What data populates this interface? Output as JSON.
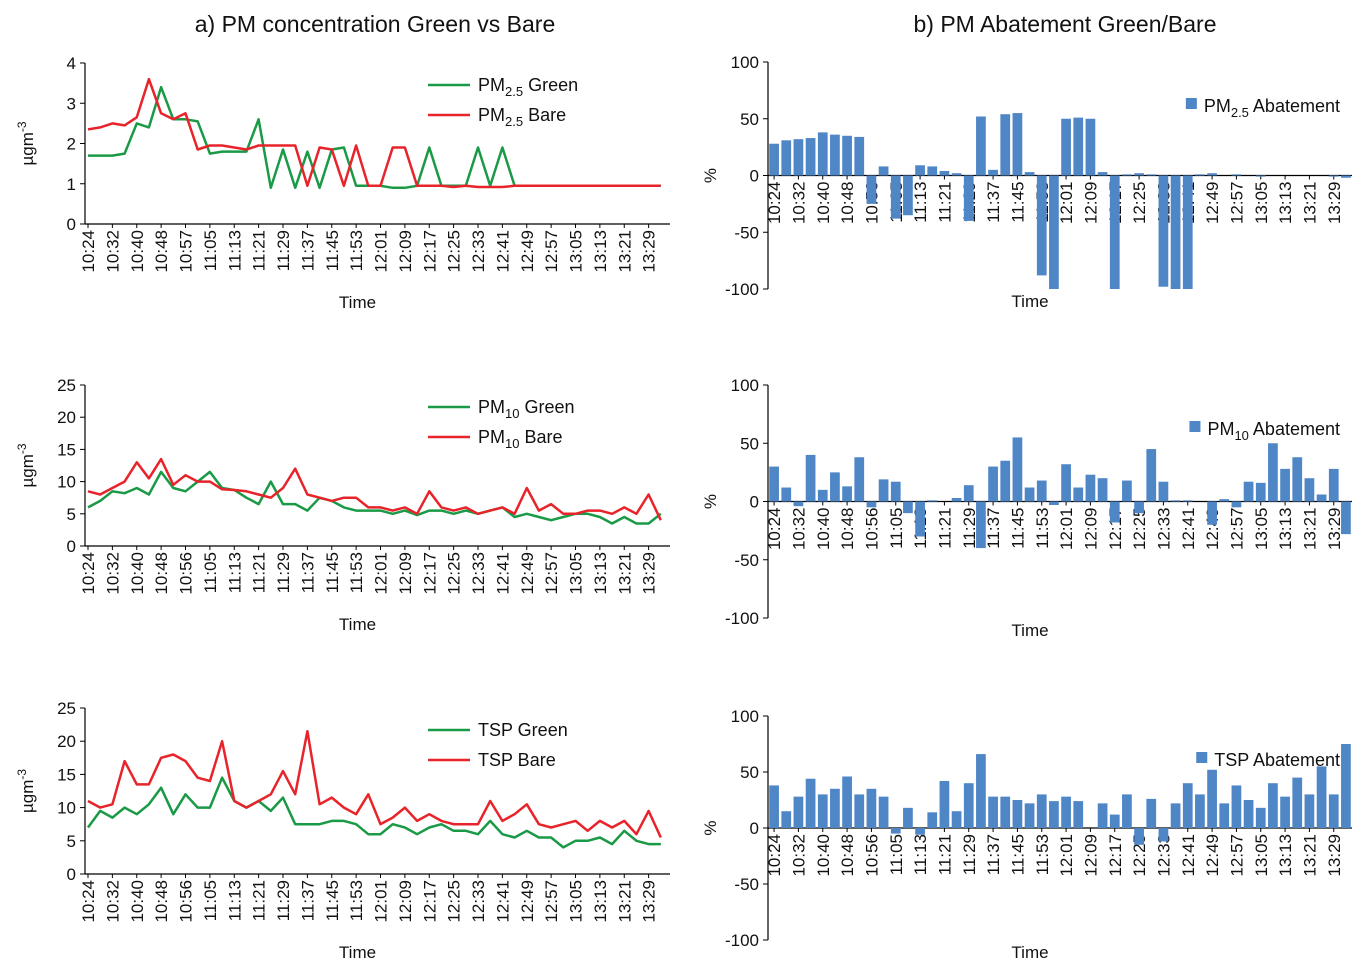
{
  "column_titles": [
    "a) PM concentration Green vs Bare",
    "b) PM Abatement Green/Bare"
  ],
  "chart_data": [
    {
      "type": "line",
      "xlabel": "Time",
      "ylabel": "µgm-3",
      "ylim": [
        0,
        4
      ],
      "yticks": [
        0,
        1,
        2,
        3,
        4
      ],
      "legend": "upper right",
      "categories": [
        "10:24",
        null,
        "10:32",
        null,
        "10:40",
        null,
        "10:48",
        null,
        "10:57",
        null,
        "11:05",
        null,
        "11:13",
        null,
        "11:21",
        null,
        "11:29",
        null,
        "11:37",
        null,
        "11:45",
        null,
        "11:53",
        null,
        "12:01",
        null,
        "12:09",
        null,
        "12:17",
        null,
        "12:25",
        null,
        "12:33",
        null,
        "12:41",
        null,
        "12:49",
        null,
        "12:57",
        null,
        "13:05",
        null,
        "13:13",
        null,
        "13:21",
        null,
        "13:29",
        null
      ],
      "series": [
        {
          "name": "PM2.5 Green",
          "color": "#1a9a46",
          "values": [
            1.7,
            1.7,
            1.7,
            1.75,
            2.5,
            2.4,
            3.4,
            2.6,
            2.6,
            2.55,
            1.75,
            1.8,
            1.8,
            1.8,
            2.6,
            0.9,
            1.85,
            0.9,
            1.8,
            0.9,
            1.85,
            1.9,
            0.95,
            0.95,
            0.95,
            0.9,
            0.9,
            0.95,
            1.9,
            0.95,
            0.95,
            0.95,
            1.9,
            0.95,
            1.9,
            0.95,
            0.95,
            0.95,
            0.95,
            0.95,
            0.95,
            0.95,
            0.95,
            0.95,
            0.95,
            0.95,
            0.95,
            0.95
          ]
        },
        {
          "name": "PM2.5 Bare",
          "color": "#e8232a",
          "values": [
            2.35,
            2.4,
            2.5,
            2.45,
            2.65,
            3.6,
            2.75,
            2.6,
            2.75,
            1.85,
            1.95,
            1.95,
            1.9,
            1.85,
            1.95,
            1.95,
            1.95,
            1.95,
            0.95,
            1.9,
            1.85,
            0.95,
            1.95,
            0.95,
            0.95,
            1.9,
            1.9,
            0.95,
            0.95,
            0.95,
            0.92,
            0.95,
            0.92,
            0.92,
            0.92,
            0.95,
            0.95,
            0.95,
            0.95,
            0.95,
            0.95,
            0.95,
            0.95,
            0.95,
            0.95,
            0.95,
            0.95,
            0.95
          ]
        }
      ]
    },
    {
      "type": "bar",
      "xlabel": "Time",
      "ylabel": "%",
      "ylim": [
        -100,
        100
      ],
      "yticks": [
        -100,
        -50,
        0,
        50,
        100
      ],
      "legend": "upper right",
      "categories": [
        "10:24",
        null,
        "10:32",
        null,
        "10:40",
        null,
        "10:48",
        null,
        "10:56",
        null,
        "11:05",
        null,
        "11:13",
        null,
        "11:21",
        null,
        "11:29",
        null,
        "11:37",
        null,
        "11:45",
        null,
        "11:53",
        null,
        "12:01",
        null,
        "12:09",
        null,
        "12:17",
        null,
        "12:25",
        null,
        "12:33",
        null,
        "12:41",
        null,
        "12:49",
        null,
        "12:57",
        null,
        "13:05",
        null,
        "13:13",
        null,
        "13:21",
        null,
        "13:29",
        null
      ],
      "series": [
        {
          "name": "PM2.5 Abatement",
          "color": "#4f86c6",
          "values": [
            28,
            31,
            32,
            33,
            38,
            36,
            35,
            34,
            -25,
            8,
            -38,
            -35,
            9,
            8,
            4,
            2,
            -40,
            52,
            5,
            54,
            55,
            3,
            -88,
            -100,
            50,
            51,
            50,
            3,
            -100,
            1,
            2,
            1,
            -98,
            -100,
            -100,
            1,
            2,
            0,
            1,
            0,
            -1,
            0,
            0,
            0,
            0,
            0,
            -1,
            -2
          ]
        }
      ]
    },
    {
      "type": "line",
      "xlabel": "Time",
      "ylabel": "µgm-3",
      "ylim": [
        0,
        25
      ],
      "yticks": [
        0,
        5,
        10,
        15,
        20,
        25
      ],
      "legend": "upper right",
      "categories": [
        "10:24",
        null,
        "10:32",
        null,
        "10:40",
        null,
        "10:48",
        null,
        "10:56",
        null,
        "11:05",
        null,
        "11:13",
        null,
        "11:21",
        null,
        "11:29",
        null,
        "11:37",
        null,
        "11:45",
        null,
        "11:53",
        null,
        "12:01",
        null,
        "12:09",
        null,
        "12:17",
        null,
        "12:25",
        null,
        "12:33",
        null,
        "12:41",
        null,
        "12:49",
        null,
        "12:57",
        null,
        "13:05",
        null,
        "13:13",
        null,
        "13:21",
        null,
        "13:29",
        null
      ],
      "series": [
        {
          "name": "PM10 Green",
          "color": "#1a9a46",
          "values": [
            6,
            7,
            8.5,
            8.2,
            9,
            8,
            11.5,
            9,
            8.5,
            10,
            11.5,
            9,
            8.7,
            7.5,
            6.5,
            10,
            6.5,
            6.5,
            5.5,
            7.5,
            7,
            6,
            5.5,
            5.5,
            5.5,
            5,
            5.5,
            4.8,
            5.5,
            5.5,
            5,
            5.5,
            5,
            5.5,
            6,
            4.5,
            5,
            4.5,
            4,
            4.5,
            5,
            5,
            4.5,
            3.5,
            4.5,
            3.5,
            3.5,
            5
          ]
        },
        {
          "name": "PM10 Bare",
          "color": "#e8232a",
          "values": [
            8.5,
            8,
            9,
            10,
            13,
            10.5,
            13.5,
            9.5,
            11,
            10,
            10,
            8.8,
            8.7,
            8.5,
            8,
            7.5,
            9,
            12,
            8,
            7.5,
            7,
            7.5,
            7.5,
            6,
            6,
            5.5,
            6,
            5,
            8.5,
            6,
            5.5,
            6,
            5,
            5.5,
            6,
            5,
            9,
            5.5,
            6.5,
            5,
            5,
            5.5,
            5.5,
            5,
            6,
            5,
            8,
            4
          ]
        }
      ]
    },
    {
      "type": "bar",
      "xlabel": "Time",
      "ylabel": "%",
      "ylim": [
        -100,
        100
      ],
      "yticks": [
        -100,
        -50,
        0,
        50,
        100
      ],
      "legend": "upper right",
      "categories": [
        "10:24",
        null,
        "10:32",
        null,
        "10:40",
        null,
        "10:48",
        null,
        "10:56",
        null,
        "11:05",
        null,
        "11:13",
        null,
        "11:21",
        null,
        "11:29",
        null,
        "11:37",
        null,
        "11:45",
        null,
        "11:53",
        null,
        "12:01",
        null,
        "12:09",
        null,
        "12:17",
        null,
        "12:25",
        null,
        "12:33",
        null,
        "12:41",
        null,
        "12:49",
        null,
        "12:57",
        null,
        "13:05",
        null,
        "13:13",
        null,
        "13:21",
        null,
        "13:29",
        null
      ],
      "series": [
        {
          "name": "PM10 Abatement",
          "color": "#4f86c6",
          "values": [
            30,
            12,
            -4,
            40,
            10,
            25,
            13,
            38,
            -5,
            19,
            17,
            -10,
            -30,
            1,
            0,
            3,
            14,
            -40,
            30,
            35,
            55,
            12,
            18,
            -3,
            32,
            12,
            23,
            20,
            -18,
            18,
            -10,
            45,
            17,
            1,
            1,
            0,
            -20,
            2,
            -5,
            17,
            16,
            50,
            28,
            38,
            20,
            6,
            28,
            -28
          ]
        }
      ]
    },
    {
      "type": "line",
      "xlabel": "Time",
      "ylabel": "µgm-3",
      "ylim": [
        0,
        25
      ],
      "yticks": [
        0,
        5,
        10,
        15,
        20,
        25
      ],
      "legend": "upper right",
      "categories": [
        "10:24",
        null,
        "10:32",
        null,
        "10:40",
        null,
        "10:48",
        null,
        "10:56",
        null,
        "11:05",
        null,
        "11:13",
        null,
        "11:21",
        null,
        "11:29",
        null,
        "11:37",
        null,
        "11:45",
        null,
        "11:53",
        null,
        "12:01",
        null,
        "12:09",
        null,
        "12:17",
        null,
        "12:25",
        null,
        "12:33",
        null,
        "12:41",
        null,
        "12:49",
        null,
        "12:57",
        null,
        "13:05",
        null,
        "13:13",
        null,
        "13:21",
        null,
        "13:29",
        null
      ],
      "series": [
        {
          "name": "TSP Green",
          "color": "#1a9a46",
          "values": [
            7,
            9.5,
            8.5,
            10,
            9,
            10.5,
            13,
            9,
            12,
            10,
            10,
            14.5,
            11,
            10,
            11,
            9.5,
            11.5,
            7.5,
            7.5,
            7.5,
            8,
            8,
            7.5,
            6,
            6,
            7.5,
            7,
            6,
            7,
            7.5,
            6.5,
            6.5,
            6,
            8,
            6,
            5.5,
            6.5,
            5.5,
            5.5,
            4,
            5,
            5,
            5.5,
            4.5,
            6.5,
            5,
            4.5,
            4.5
          ]
        },
        {
          "name": "TSP Bare",
          "color": "#e8232a",
          "values": [
            11,
            10,
            10.5,
            17,
            13.5,
            13.5,
            17.5,
            18,
            17,
            14.5,
            14,
            20,
            11,
            10,
            11,
            12,
            15.5,
            12,
            21.5,
            10.5,
            11.5,
            10,
            9,
            12,
            7.5,
            8.5,
            10,
            8,
            9,
            8,
            7.5,
            7.5,
            7.5,
            11,
            8,
            9,
            10.5,
            7.5,
            7,
            7.5,
            8,
            6.5,
            8,
            7,
            8,
            6,
            9.5,
            5.5
          ]
        }
      ]
    },
    {
      "type": "bar",
      "xlabel": "Time",
      "ylabel": "%",
      "ylim": [
        -100,
        100
      ],
      "yticks": [
        -100,
        -50,
        0,
        50,
        100
      ],
      "legend": "upper right",
      "categories": [
        "10:24",
        null,
        "10:32",
        null,
        "10:40",
        null,
        "10:48",
        null,
        "10:56",
        null,
        "11:05",
        null,
        "11:13",
        null,
        "11:21",
        null,
        "11:29",
        null,
        "11:37",
        null,
        "11:45",
        null,
        "11:53",
        null,
        "12:01",
        null,
        "12:09",
        null,
        "12:17",
        null,
        "12:25",
        null,
        "12:33",
        null,
        "12:41",
        null,
        "12:49",
        null,
        "12:57",
        null,
        "13:05",
        null,
        "13:13",
        null,
        "13:21",
        null,
        "13:29",
        null
      ],
      "series": [
        {
          "name": "TSP Abatement",
          "color": "#4f86c6",
          "values": [
            38,
            15,
            28,
            44,
            30,
            35,
            46,
            30,
            35,
            28,
            -5,
            18,
            -6,
            14,
            42,
            15,
            40,
            66,
            28,
            28,
            25,
            22,
            30,
            24,
            28,
            24,
            0,
            22,
            12,
            30,
            -15,
            26,
            -12,
            22,
            40,
            30,
            52,
            22,
            38,
            25,
            18,
            40,
            28,
            45,
            30,
            55,
            30,
            75
          ]
        }
      ]
    }
  ]
}
